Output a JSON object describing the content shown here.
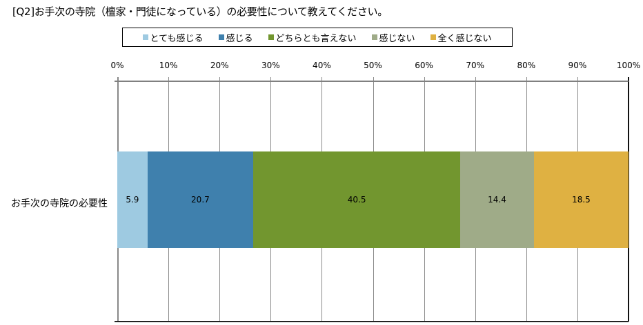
{
  "title": "[Q2]お手次の寺院（檀家・門徒になっている）の必要性について教えてください。",
  "legend": [
    {
      "label": "とても感じる",
      "color": "#9ECAE1"
    },
    {
      "label": "感じる",
      "color": "#3F80AD"
    },
    {
      "label": "どちらとも言えない",
      "color": "#72962F"
    },
    {
      "label": "感じない",
      "color": "#9FAB88"
    },
    {
      "label": "全く感じない",
      "color": "#DFB142"
    }
  ],
  "axis": {
    "ticks": [
      "0%",
      "10%",
      "20%",
      "30%",
      "40%",
      "50%",
      "60%",
      "70%",
      "80%",
      "90%",
      "100%"
    ]
  },
  "category": "お手次の寺院の必要性",
  "segments": [
    {
      "label": "5.9",
      "value": 5.9,
      "color": "#9ECAE1"
    },
    {
      "label": "20.7",
      "value": 20.7,
      "color": "#3F80AD"
    },
    {
      "label": "40.5",
      "value": 40.5,
      "color": "#72962F"
    },
    {
      "label": "14.4",
      "value": 14.4,
      "color": "#9FAB88"
    },
    {
      "label": "18.5",
      "value": 18.5,
      "color": "#DFB142"
    }
  ],
  "chart_data": {
    "type": "bar",
    "orientation": "horizontal",
    "stacked": "percent",
    "title": "[Q2]お手次の寺院（檀家・門徒になっている）の必要性について教えてください。",
    "categories": [
      "お手次の寺院の必要性"
    ],
    "series": [
      {
        "name": "とても感じる",
        "values": [
          5.9
        ],
        "color": "#9ECAE1"
      },
      {
        "name": "感じる",
        "values": [
          20.7
        ],
        "color": "#3F80AD"
      },
      {
        "name": "どちらとも言えない",
        "values": [
          40.5
        ],
        "color": "#72962F"
      },
      {
        "name": "感じない",
        "values": [
          14.4
        ],
        "color": "#9FAB88"
      },
      {
        "name": "全く感じない",
        "values": [
          18.5
        ],
        "color": "#DFB142"
      }
    ],
    "xlabel": "",
    "ylabel": "",
    "xlim": [
      0,
      100
    ],
    "x_ticks": [
      "0%",
      "10%",
      "20%",
      "30%",
      "40%",
      "50%",
      "60%",
      "70%",
      "80%",
      "90%",
      "100%"
    ],
    "grid": true,
    "legend_position": "top",
    "data_labels": true
  }
}
